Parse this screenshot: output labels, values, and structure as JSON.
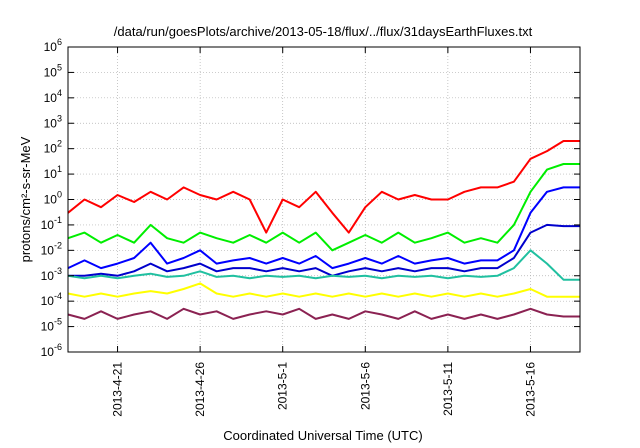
{
  "chart_data": {
    "type": "line",
    "title": "/data/run/goesPlots/archive/2013-05-18/flux/../flux/31daysEarthFluxes.txt",
    "xlabel": "Coordinated Universal Time (UTC)",
    "ylabel": "protons/cm²-s-sr-MeV",
    "y_scale": "log",
    "ylim": [
      1e-06,
      1000000.0
    ],
    "xlim": [
      "2013-04-18",
      "2013-05-19"
    ],
    "grid": true,
    "y_ticks": [
      {
        "value": 1e-06,
        "base": "10",
        "exp": "-6"
      },
      {
        "value": 1e-05,
        "base": "10",
        "exp": "-5"
      },
      {
        "value": 0.0001,
        "base": "10",
        "exp": "-4"
      },
      {
        "value": 0.001,
        "base": "10",
        "exp": "-3"
      },
      {
        "value": 0.01,
        "base": "10",
        "exp": "-2"
      },
      {
        "value": 0.1,
        "base": "10",
        "exp": "-1"
      },
      {
        "value": 1,
        "base": "10",
        "exp": "0"
      },
      {
        "value": 10,
        "base": "10",
        "exp": "1"
      },
      {
        "value": 100,
        "base": "10",
        "exp": "2"
      },
      {
        "value": 1000,
        "base": "10",
        "exp": "3"
      },
      {
        "value": 10000,
        "base": "10",
        "exp": "4"
      },
      {
        "value": 100000,
        "base": "10",
        "exp": "5"
      },
      {
        "value": 1000000,
        "base": "10",
        "exp": "6"
      }
    ],
    "x_ticks": [
      {
        "date": "2013-04-21",
        "label": "2013-4-21"
      },
      {
        "date": "2013-04-26",
        "label": "2013-4-26"
      },
      {
        "date": "2013-05-01",
        "label": "2013-5-1"
      },
      {
        "date": "2013-05-06",
        "label": "2013-5-6"
      },
      {
        "date": "2013-05-11",
        "label": "2013-5-11"
      },
      {
        "date": "2013-05-16",
        "label": "2013-5-16"
      }
    ],
    "series": [
      {
        "color": "#ff0000",
        "values": [
          [
            "2013-04-18",
            0.3
          ],
          [
            "2013-04-19",
            1.0
          ],
          [
            "2013-04-20",
            0.5
          ],
          [
            "2013-04-21",
            1.5
          ],
          [
            "2013-04-22",
            0.8
          ],
          [
            "2013-04-23",
            2.0
          ],
          [
            "2013-04-24",
            1.0
          ],
          [
            "2013-04-25",
            3.0
          ],
          [
            "2013-04-26",
            1.5
          ],
          [
            "2013-04-27",
            1.0
          ],
          [
            "2013-04-28",
            2.0
          ],
          [
            "2013-04-29",
            1.0
          ],
          [
            "2013-04-30",
            0.05
          ],
          [
            "2013-05-01",
            1.0
          ],
          [
            "2013-05-02",
            0.5
          ],
          [
            "2013-05-03",
            2.0
          ],
          [
            "2013-05-04",
            0.3
          ],
          [
            "2013-05-05",
            0.05
          ],
          [
            "2013-05-06",
            0.5
          ],
          [
            "2013-05-07",
            2.0
          ],
          [
            "2013-05-08",
            1.0
          ],
          [
            "2013-05-09",
            1.5
          ],
          [
            "2013-05-10",
            1.0
          ],
          [
            "2013-05-11",
            1.0
          ],
          [
            "2013-05-12",
            2.0
          ],
          [
            "2013-05-13",
            3.0
          ],
          [
            "2013-05-14",
            3.0
          ],
          [
            "2013-05-15",
            5.0
          ],
          [
            "2013-05-16",
            40.0
          ],
          [
            "2013-05-17",
            80.0
          ],
          [
            "2013-05-18",
            200.0
          ],
          [
            "2013-05-19",
            200.0
          ]
        ]
      },
      {
        "color": "#00ee00",
        "values": [
          [
            "2013-04-18",
            0.03
          ],
          [
            "2013-04-19",
            0.05
          ],
          [
            "2013-04-20",
            0.02
          ],
          [
            "2013-04-21",
            0.04
          ],
          [
            "2013-04-22",
            0.02
          ],
          [
            "2013-04-23",
            0.1
          ],
          [
            "2013-04-24",
            0.03
          ],
          [
            "2013-04-25",
            0.02
          ],
          [
            "2013-04-26",
            0.05
          ],
          [
            "2013-04-27",
            0.03
          ],
          [
            "2013-04-28",
            0.02
          ],
          [
            "2013-04-29",
            0.04
          ],
          [
            "2013-04-30",
            0.02
          ],
          [
            "2013-05-01",
            0.05
          ],
          [
            "2013-05-02",
            0.02
          ],
          [
            "2013-05-03",
            0.05
          ],
          [
            "2013-05-04",
            0.01
          ],
          [
            "2013-05-05",
            0.02
          ],
          [
            "2013-05-06",
            0.04
          ],
          [
            "2013-05-07",
            0.02
          ],
          [
            "2013-05-08",
            0.05
          ],
          [
            "2013-05-09",
            0.02
          ],
          [
            "2013-05-10",
            0.03
          ],
          [
            "2013-05-11",
            0.05
          ],
          [
            "2013-05-12",
            0.02
          ],
          [
            "2013-05-13",
            0.03
          ],
          [
            "2013-05-14",
            0.02
          ],
          [
            "2013-05-15",
            0.1
          ],
          [
            "2013-05-16",
            2.0
          ],
          [
            "2013-05-17",
            15.0
          ],
          [
            "2013-05-18",
            25.0
          ],
          [
            "2013-05-19",
            25.0
          ]
        ]
      },
      {
        "color": "#0000ff",
        "values": [
          [
            "2013-04-18",
            0.002
          ],
          [
            "2013-04-19",
            0.004
          ],
          [
            "2013-04-20",
            0.002
          ],
          [
            "2013-04-21",
            0.003
          ],
          [
            "2013-04-22",
            0.005
          ],
          [
            "2013-04-23",
            0.02
          ],
          [
            "2013-04-24",
            0.003
          ],
          [
            "2013-04-25",
            0.005
          ],
          [
            "2013-04-26",
            0.01
          ],
          [
            "2013-04-27",
            0.003
          ],
          [
            "2013-04-28",
            0.004
          ],
          [
            "2013-04-29",
            0.005
          ],
          [
            "2013-04-30",
            0.003
          ],
          [
            "2013-05-01",
            0.005
          ],
          [
            "2013-05-02",
            0.003
          ],
          [
            "2013-05-03",
            0.006
          ],
          [
            "2013-05-04",
            0.002
          ],
          [
            "2013-05-05",
            0.003
          ],
          [
            "2013-05-06",
            0.005
          ],
          [
            "2013-05-07",
            0.003
          ],
          [
            "2013-05-08",
            0.006
          ],
          [
            "2013-05-09",
            0.003
          ],
          [
            "2013-05-10",
            0.004
          ],
          [
            "2013-05-11",
            0.005
          ],
          [
            "2013-05-12",
            0.003
          ],
          [
            "2013-05-13",
            0.004
          ],
          [
            "2013-05-14",
            0.004
          ],
          [
            "2013-05-15",
            0.01
          ],
          [
            "2013-05-16",
            0.3
          ],
          [
            "2013-05-17",
            2.0
          ],
          [
            "2013-05-18",
            3.0
          ],
          [
            "2013-05-19",
            3.0
          ]
        ]
      },
      {
        "color": "#0000cc",
        "values": [
          [
            "2013-04-18",
            0.001
          ],
          [
            "2013-04-19",
            0.001
          ],
          [
            "2013-04-20",
            0.0012
          ],
          [
            "2013-04-21",
            0.001
          ],
          [
            "2013-04-22",
            0.0015
          ],
          [
            "2013-04-23",
            0.003
          ],
          [
            "2013-04-24",
            0.0015
          ],
          [
            "2013-04-25",
            0.002
          ],
          [
            "2013-04-26",
            0.003
          ],
          [
            "2013-04-27",
            0.0015
          ],
          [
            "2013-04-28",
            0.002
          ],
          [
            "2013-04-29",
            0.002
          ],
          [
            "2013-04-30",
            0.0015
          ],
          [
            "2013-05-01",
            0.002
          ],
          [
            "2013-05-02",
            0.0015
          ],
          [
            "2013-05-03",
            0.002
          ],
          [
            "2013-05-04",
            0.001
          ],
          [
            "2013-05-05",
            0.0015
          ],
          [
            "2013-05-06",
            0.002
          ],
          [
            "2013-05-07",
            0.0015
          ],
          [
            "2013-05-08",
            0.002
          ],
          [
            "2013-05-09",
            0.0015
          ],
          [
            "2013-05-10",
            0.002
          ],
          [
            "2013-05-11",
            0.002
          ],
          [
            "2013-05-12",
            0.0015
          ],
          [
            "2013-05-13",
            0.002
          ],
          [
            "2013-05-14",
            0.002
          ],
          [
            "2013-05-15",
            0.005
          ],
          [
            "2013-05-16",
            0.05
          ],
          [
            "2013-05-17",
            0.1
          ],
          [
            "2013-05-18",
            0.09
          ],
          [
            "2013-05-19",
            0.09
          ]
        ]
      },
      {
        "color": "#20c0a0",
        "values": [
          [
            "2013-04-18",
            0.001
          ],
          [
            "2013-04-19",
            0.0008
          ],
          [
            "2013-04-20",
            0.001
          ],
          [
            "2013-04-21",
            0.0008
          ],
          [
            "2013-04-22",
            0.001
          ],
          [
            "2013-04-23",
            0.0012
          ],
          [
            "2013-04-24",
            0.0009
          ],
          [
            "2013-04-25",
            0.001
          ],
          [
            "2013-04-26",
            0.0015
          ],
          [
            "2013-04-27",
            0.0009
          ],
          [
            "2013-04-28",
            0.001
          ],
          [
            "2013-04-29",
            0.0008
          ],
          [
            "2013-04-30",
            0.001
          ],
          [
            "2013-05-01",
            0.0009
          ],
          [
            "2013-05-02",
            0.001
          ],
          [
            "2013-05-03",
            0.0008
          ],
          [
            "2013-05-04",
            0.001
          ],
          [
            "2013-05-05",
            0.0009
          ],
          [
            "2013-05-06",
            0.001
          ],
          [
            "2013-05-07",
            0.0008
          ],
          [
            "2013-05-08",
            0.001
          ],
          [
            "2013-05-09",
            0.0009
          ],
          [
            "2013-05-10",
            0.001
          ],
          [
            "2013-05-11",
            0.0008
          ],
          [
            "2013-05-12",
            0.001
          ],
          [
            "2013-05-13",
            0.0009
          ],
          [
            "2013-05-14",
            0.001
          ],
          [
            "2013-05-15",
            0.002
          ],
          [
            "2013-05-16",
            0.01
          ],
          [
            "2013-05-17",
            0.003
          ],
          [
            "2013-05-18",
            0.0007
          ],
          [
            "2013-05-19",
            0.0007
          ]
        ]
      },
      {
        "color": "#ffff00",
        "values": [
          [
            "2013-04-18",
            0.0002
          ],
          [
            "2013-04-19",
            0.00015
          ],
          [
            "2013-04-20",
            0.0002
          ],
          [
            "2013-04-21",
            0.00015
          ],
          [
            "2013-04-22",
            0.0002
          ],
          [
            "2013-04-23",
            0.00025
          ],
          [
            "2013-04-24",
            0.0002
          ],
          [
            "2013-04-25",
            0.0003
          ],
          [
            "2013-04-26",
            0.0005
          ],
          [
            "2013-04-27",
            0.0002
          ],
          [
            "2013-04-28",
            0.00015
          ],
          [
            "2013-04-29",
            0.0002
          ],
          [
            "2013-04-30",
            0.00015
          ],
          [
            "2013-05-01",
            0.0002
          ],
          [
            "2013-05-02",
            0.00015
          ],
          [
            "2013-05-03",
            0.0002
          ],
          [
            "2013-05-04",
            0.00015
          ],
          [
            "2013-05-05",
            0.0002
          ],
          [
            "2013-05-06",
            0.00015
          ],
          [
            "2013-05-07",
            0.0002
          ],
          [
            "2013-05-08",
            0.00015
          ],
          [
            "2013-05-09",
            0.0002
          ],
          [
            "2013-05-10",
            0.00015
          ],
          [
            "2013-05-11",
            0.0002
          ],
          [
            "2013-05-12",
            0.00015
          ],
          [
            "2013-05-13",
            0.0002
          ],
          [
            "2013-05-14",
            0.00015
          ],
          [
            "2013-05-15",
            0.0002
          ],
          [
            "2013-05-16",
            0.0003
          ],
          [
            "2013-05-17",
            0.00015
          ],
          [
            "2013-05-18",
            0.00015
          ],
          [
            "2013-05-19",
            0.00015
          ]
        ]
      },
      {
        "color": "#8b2252",
        "values": [
          [
            "2013-04-18",
            3e-05
          ],
          [
            "2013-04-19",
            2e-05
          ],
          [
            "2013-04-20",
            4e-05
          ],
          [
            "2013-04-21",
            2e-05
          ],
          [
            "2013-04-22",
            3e-05
          ],
          [
            "2013-04-23",
            4e-05
          ],
          [
            "2013-04-24",
            2e-05
          ],
          [
            "2013-04-25",
            5e-05
          ],
          [
            "2013-04-26",
            3e-05
          ],
          [
            "2013-04-27",
            4e-05
          ],
          [
            "2013-04-28",
            2e-05
          ],
          [
            "2013-04-29",
            3e-05
          ],
          [
            "2013-04-30",
            4e-05
          ],
          [
            "2013-05-01",
            3e-05
          ],
          [
            "2013-05-02",
            5e-05
          ],
          [
            "2013-05-03",
            2e-05
          ],
          [
            "2013-05-04",
            3e-05
          ],
          [
            "2013-05-05",
            2e-05
          ],
          [
            "2013-05-06",
            4e-05
          ],
          [
            "2013-05-07",
            3e-05
          ],
          [
            "2013-05-08",
            2e-05
          ],
          [
            "2013-05-09",
            4e-05
          ],
          [
            "2013-05-10",
            2e-05
          ],
          [
            "2013-05-11",
            3e-05
          ],
          [
            "2013-05-12",
            2e-05
          ],
          [
            "2013-05-13",
            3e-05
          ],
          [
            "2013-05-14",
            2e-05
          ],
          [
            "2013-05-15",
            3e-05
          ],
          [
            "2013-05-16",
            5e-05
          ],
          [
            "2013-05-17",
            3e-05
          ],
          [
            "2013-05-18",
            2.5e-05
          ],
          [
            "2013-05-19",
            2.5e-05
          ]
        ]
      }
    ]
  }
}
